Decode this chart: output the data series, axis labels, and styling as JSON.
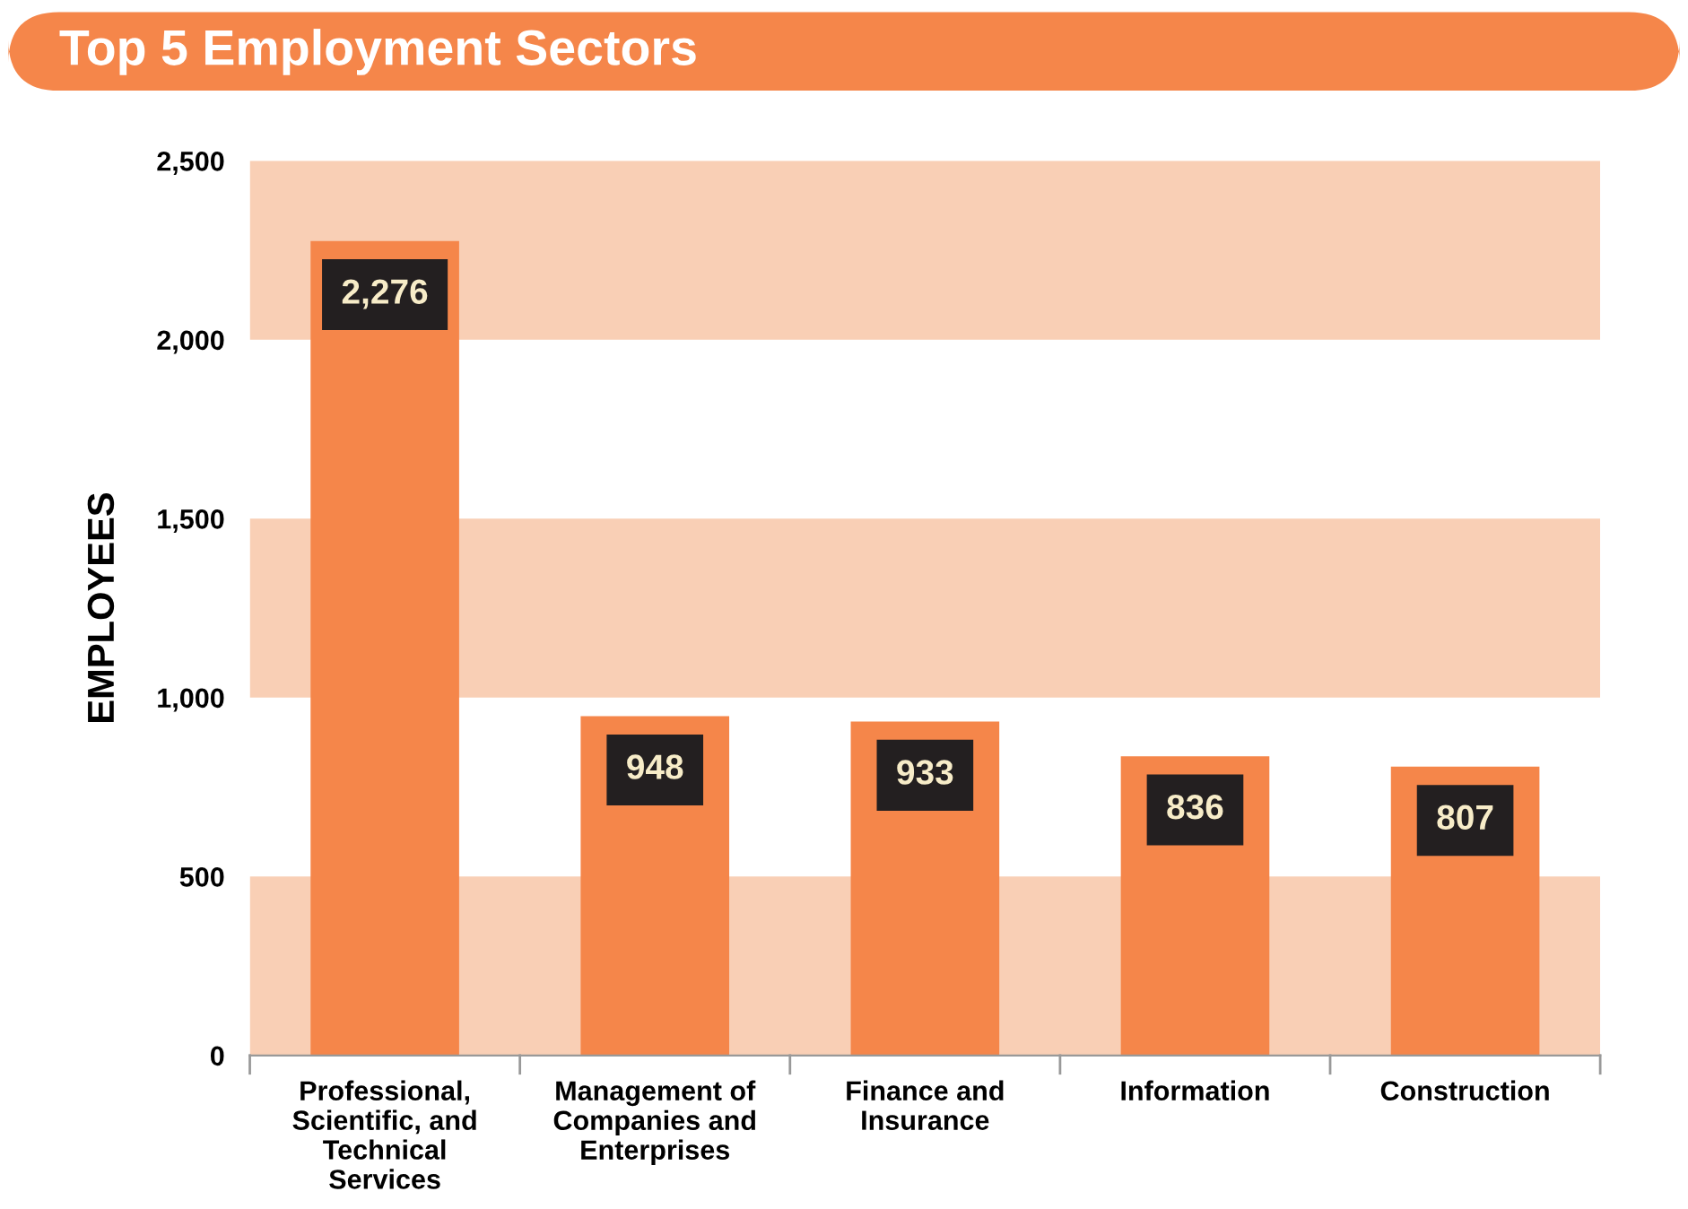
{
  "chart_data": {
    "type": "bar",
    "title": "Top 5 Employment Sectors",
    "ylabel": "EMPLOYEES",
    "categories": [
      "Professional,\nScientific, and\nTechnical\nServices",
      "Management of\nCompanies and\nEnterprises",
      "Finance and\nInsurance",
      "Information",
      "Construction"
    ],
    "values": [
      2276,
      948,
      933,
      836,
      807
    ],
    "color": "#f5864a",
    "value_labels": [
      "2,276",
      "948",
      "933",
      "836",
      "807"
    ],
    "ylim": [
      0,
      2500
    ],
    "yticks": [
      0,
      500,
      {
        "value": 1000,
        "label": "1,000"
      },
      {
        "value": 1500,
        "label": "1,500"
      },
      {
        "value": 2000,
        "label": "2,000"
      },
      {
        "value": 2500,
        "label": "2,500"
      }
    ],
    "bands": [
      {
        "axis": "y",
        "from": 0,
        "to": 500,
        "color": "#f9cfb5"
      },
      {
        "axis": "y",
        "from": 1000,
        "to": 1500,
        "color": "#f9cfb5"
      },
      {
        "axis": "y",
        "from": 2000,
        "to": 2500,
        "color": "#f9cfb5"
      }
    ],
    "grid": false,
    "legend": false
  }
}
